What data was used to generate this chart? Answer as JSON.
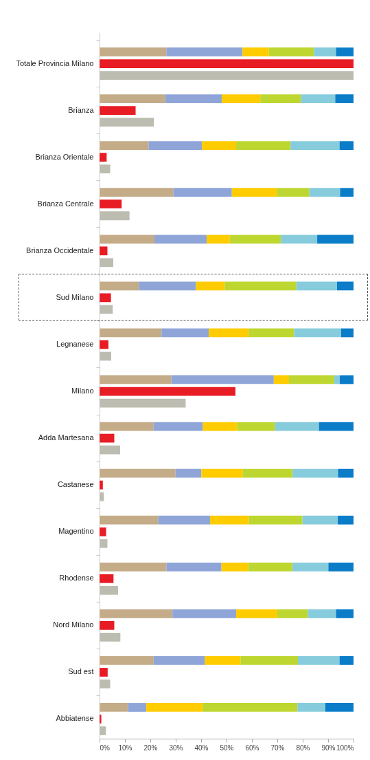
{
  "chart_data": {
    "type": "bar",
    "orientation": "horizontal",
    "stacked": true,
    "categories": [
      null,
      null,
      "Totale Provincia Milano",
      null,
      null,
      null,
      "Brianza",
      null,
      null,
      null,
      "Brianza Orientale",
      null,
      null,
      null,
      "Brianza Centrale",
      null,
      null,
      null,
      "Brianza Occidentale",
      null,
      null,
      null,
      "Sud Milano",
      null,
      null,
      null,
      "Legnanese",
      null,
      null,
      null,
      "Milano",
      null,
      null,
      null,
      "Adda Martesana",
      null,
      null,
      null,
      "Castanese",
      null,
      null,
      null,
      "Magentino",
      null,
      null,
      null,
      "Rhodense",
      null,
      null,
      null,
      "Nord Milano",
      null,
      null,
      null,
      "Sud est",
      null,
      null,
      null,
      "Abbiatense",
      null
    ],
    "series": [
      {
        "color": "#c4ac89",
        "values": [
          null,
          26.3,
          null,
          null,
          null,
          25.8,
          null,
          null,
          null,
          19.3,
          null,
          null,
          null,
          29.1,
          null,
          null,
          null,
          21.6,
          null,
          null,
          null,
          15.5,
          null,
          null,
          null,
          24.4,
          null,
          null,
          null,
          28.3,
          null,
          null,
          null,
          21.3,
          null,
          null,
          null,
          29.9,
          null,
          null,
          null,
          23.1,
          null,
          null,
          null,
          26.3,
          null,
          null,
          null,
          28.7,
          null,
          null,
          null,
          21.3,
          null,
          null,
          null,
          11.2,
          null,
          null
        ]
      },
      {
        "color": "#8fa5d8",
        "values": [
          null,
          30.0,
          null,
          null,
          null,
          22.3,
          null,
          null,
          null,
          21.0,
          null,
          null,
          null,
          23.0,
          null,
          null,
          null,
          20.6,
          null,
          null,
          null,
          22.5,
          null,
          null,
          null,
          18.6,
          null,
          null,
          null,
          40.3,
          null,
          null,
          null,
          19.4,
          null,
          null,
          null,
          10.2,
          null,
          null,
          null,
          20.4,
          null,
          null,
          null,
          21.7,
          null,
          null,
          null,
          25.1,
          null,
          null,
          null,
          20.2,
          null,
          null,
          null,
          7.2,
          null,
          null
        ]
      },
      {
        "color": "#ffcc00",
        "values": [
          null,
          10.4,
          null,
          null,
          null,
          15.2,
          null,
          null,
          null,
          13.5,
          null,
          null,
          null,
          17.7,
          null,
          null,
          null,
          9.1,
          null,
          null,
          null,
          11.3,
          null,
          null,
          null,
          15.7,
          null,
          null,
          null,
          6.0,
          null,
          null,
          null,
          13.5,
          null,
          null,
          null,
          16.2,
          null,
          null,
          null,
          15.3,
          null,
          null,
          null,
          10.5,
          null,
          null,
          null,
          16.2,
          null,
          null,
          null,
          14.0,
          null,
          null,
          null,
          22.2,
          null,
          null
        ]
      },
      {
        "color": "#bed630",
        "values": [
          null,
          17.7,
          null,
          null,
          null,
          16.0,
          null,
          null,
          null,
          21.4,
          null,
          null,
          null,
          12.8,
          null,
          null,
          null,
          20.1,
          null,
          null,
          null,
          28.2,
          null,
          null,
          null,
          17.9,
          null,
          null,
          null,
          17.8,
          null,
          null,
          null,
          14.9,
          null,
          null,
          null,
          19.7,
          null,
          null,
          null,
          21.1,
          null,
          null,
          null,
          17.5,
          null,
          null,
          null,
          12.0,
          null,
          null,
          null,
          22.6,
          null,
          null,
          null,
          37.3,
          null,
          null
        ]
      },
      {
        "color": "#86ccdc",
        "values": [
          null,
          8.7,
          null,
          null,
          null,
          13.5,
          null,
          null,
          null,
          19.3,
          null,
          null,
          null,
          12.1,
          null,
          null,
          null,
          14.3,
          null,
          null,
          null,
          16.0,
          null,
          null,
          null,
          18.5,
          null,
          null,
          null,
          2.2,
          null,
          null,
          null,
          17.3,
          null,
          null,
          null,
          17.9,
          null,
          null,
          null,
          13.9,
          null,
          null,
          null,
          14.1,
          null,
          null,
          null,
          11.1,
          null,
          null,
          null,
          16.4,
          null,
          null,
          null,
          11.0,
          null,
          null
        ]
      },
      {
        "color": "#0a7cc8",
        "values": [
          null,
          6.9,
          null,
          null,
          null,
          7.2,
          null,
          null,
          null,
          5.5,
          null,
          null,
          null,
          5.3,
          null,
          null,
          null,
          14.3,
          null,
          null,
          null,
          6.5,
          null,
          null,
          null,
          4.9,
          null,
          null,
          null,
          5.4,
          null,
          null,
          null,
          13.6,
          null,
          null,
          null,
          6.1,
          null,
          null,
          null,
          6.2,
          null,
          null,
          null,
          9.9,
          null,
          null,
          null,
          6.9,
          null,
          null,
          null,
          5.5,
          null,
          null,
          null,
          11.1,
          null,
          null
        ]
      },
      {
        "color": "#e81c24",
        "values": [
          null,
          null,
          100,
          null,
          null,
          null,
          14.2,
          null,
          null,
          null,
          2.8,
          null,
          null,
          null,
          8.7,
          null,
          null,
          null,
          3.1,
          null,
          null,
          null,
          4.5,
          null,
          null,
          null,
          3.5,
          null,
          null,
          null,
          53.5,
          null,
          null,
          null,
          5.8,
          null,
          null,
          null,
          1.3,
          null,
          null,
          null,
          2.6,
          null,
          null,
          null,
          5.5,
          null,
          null,
          null,
          5.8,
          null,
          null,
          null,
          3.2,
          null,
          null,
          null,
          0.7,
          null
        ]
      },
      {
        "color": "#bcbcb0",
        "values": [
          null,
          null,
          null,
          100,
          null,
          null,
          null,
          21.4,
          null,
          null,
          null,
          4.2,
          null,
          null,
          null,
          11.8,
          null,
          null,
          null,
          5.4,
          null,
          null,
          null,
          5.2,
          null,
          null,
          null,
          4.6,
          null,
          null,
          null,
          33.9,
          null,
          null,
          null,
          8.1,
          null,
          null,
          null,
          1.7,
          null,
          null,
          null,
          3.1,
          null,
          null,
          null,
          7.3,
          null,
          null,
          null,
          8.2,
          null,
          null,
          null,
          4.2,
          null,
          null,
          null,
          2.5
        ]
      }
    ],
    "xlim": [
      0,
      100
    ],
    "xticks": [
      {
        "value": 0,
        "label": "0%"
      },
      {
        "value": 10,
        "label": "10%"
      },
      {
        "value": 20,
        "label": "20%"
      },
      {
        "value": 30,
        "label": "30%"
      },
      {
        "value": 40,
        "label": "40%"
      },
      {
        "value": 50,
        "label": "50%"
      },
      {
        "value": 60,
        "label": "60%"
      },
      {
        "value": 70,
        "label": "70%"
      },
      {
        "value": 80,
        "label": "80%"
      },
      {
        "value": 90,
        "label": "90%"
      },
      {
        "value": 100,
        "label": "100%"
      }
    ]
  }
}
